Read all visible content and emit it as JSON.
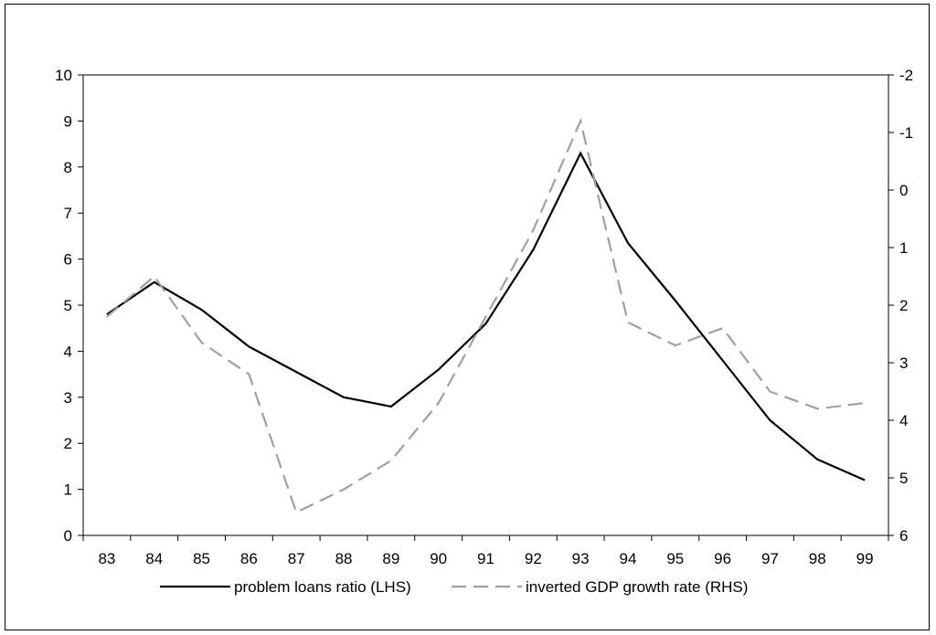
{
  "chart_data": {
    "type": "line",
    "title": "",
    "xlabel": "",
    "ylabel_left": "",
    "ylabel_right": "",
    "categories": [
      "83",
      "84",
      "85",
      "86",
      "87",
      "88",
      "89",
      "90",
      "91",
      "92",
      "93",
      "94",
      "95",
      "96",
      "97",
      "98",
      "99"
    ],
    "left_axis": {
      "ylim": [
        0,
        10
      ],
      "ticks": [
        "0",
        "1",
        "2",
        "3",
        "4",
        "5",
        "6",
        "7",
        "8",
        "9",
        "10"
      ]
    },
    "right_axis": {
      "ylim": [
        6,
        -2
      ],
      "inverted": true,
      "ticks": [
        "6",
        "5",
        "4",
        "3",
        "2",
        "1",
        "0",
        "-1",
        "-2"
      ]
    },
    "series": [
      {
        "name": "problem loans ratio (LHS)",
        "axis": "left",
        "style": "solid",
        "color": "#000000",
        "values": [
          4.8,
          5.5,
          4.9,
          4.1,
          3.55,
          3.0,
          2.8,
          3.6,
          4.6,
          6.2,
          8.3,
          6.35,
          5.1,
          3.8,
          2.5,
          1.65,
          1.2
        ]
      },
      {
        "name": "inverted GDP  growth rate (RHS)",
        "axis": "right",
        "style": "dashed",
        "color": "#a0a0a0",
        "values": [
          2.2,
          1.5,
          2.65,
          3.2,
          5.6,
          5.2,
          4.7,
          3.7,
          2.2,
          0.7,
          -1.2,
          2.3,
          2.7,
          2.4,
          3.5,
          3.8,
          3.7
        ]
      }
    ],
    "grid": false,
    "legend_position": "bottom-center"
  }
}
